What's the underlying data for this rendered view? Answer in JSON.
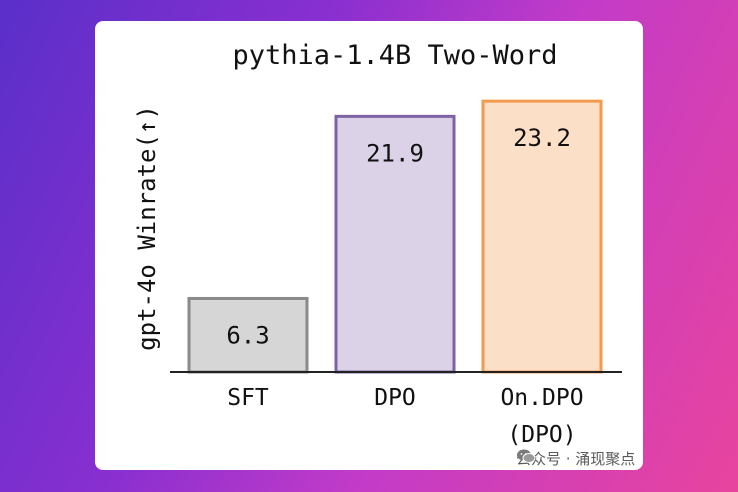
{
  "watermark": {
    "text": "公众号 · 涌现聚点",
    "icon": "wechat-icon"
  },
  "chart_data": {
    "type": "bar",
    "title": "pythia-1.4B Two-Word",
    "ylabel": "gpt-4o Winrate(↑)",
    "xlabel": "",
    "categories": [
      "SFT",
      "DPO",
      "On.DPO (DPO)"
    ],
    "category_lines": [
      [
        "SFT"
      ],
      [
        "DPO"
      ],
      [
        "On.DPO",
        "(DPO)"
      ]
    ],
    "values": [
      6.3,
      21.9,
      23.2
    ],
    "value_labels": [
      "6.3",
      "21.9",
      "23.2"
    ],
    "ylim": [
      0,
      24.5
    ],
    "grid": false,
    "colors": {
      "fills": [
        "#d6d6d6",
        "#dbd2e8",
        "#fbdfc6"
      ],
      "strokes": [
        "#8a8a8a",
        "#7f62a3",
        "#f39a4f"
      ]
    }
  }
}
